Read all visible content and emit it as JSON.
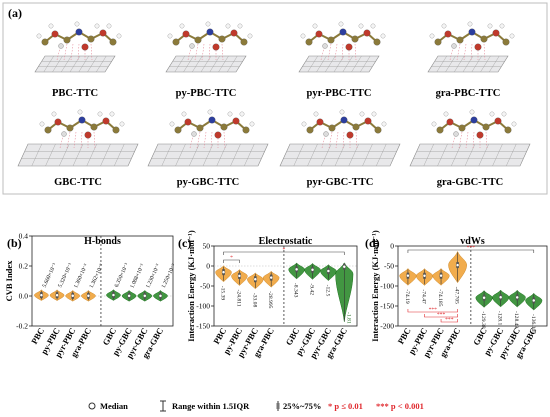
{
  "panel_a": {
    "label": "(a)",
    "structures": [
      "PBC-TTC",
      "py-PBC-TTC",
      "pyr-PBC-TTC",
      "gra-PBC-TTC",
      "GBC-TTC",
      "py-GBC-TTC",
      "pyr-GBC-TTC",
      "gra-GBC-TTC"
    ]
  },
  "colors": {
    "pbc": "#f0a43a",
    "gbc": "#2e8b2e",
    "sig_red": "#e0282d",
    "accent_outline": "#e07b8b"
  },
  "chart_data": [
    {
      "panel": "(b)",
      "type": "violin",
      "title": "H-bonds",
      "ylabel": "CVB Index",
      "ylim": [
        -0.2,
        0.4
      ],
      "yticks": [
        "-0.2",
        "0.0",
        "0.2",
        "0.4"
      ],
      "categories": [
        "PBC",
        "py-PBC",
        "pyr-PBC",
        "gra-PBC",
        "GBC",
        "py-GBC",
        "pyr-GBC",
        "gra-GBC"
      ],
      "medians": [
        0.00566,
        0.00532,
        0.00136,
        0.001362,
        0.00635,
        0.001088,
        0.00123,
        0.00125
      ],
      "annotations": [
        "5.660×10⁻³",
        "5.320×10⁻³",
        "1.360×10⁻³",
        "1.362×10⁻³",
        "6.350×10⁻³",
        "1.088×10⁻³",
        "1.230×10⁻³",
        "1.250×10⁻³"
      ]
    },
    {
      "panel": "(c)",
      "type": "violin",
      "title": "Electrostatic",
      "ylabel": "Interaction Energy (KJ·mol⁻¹)",
      "ylim": [
        -150,
        50
      ],
      "yticks": [
        "-150",
        "-100",
        "-50",
        "0",
        "50"
      ],
      "categories": [
        "PBC",
        "py-PBC",
        "pyr-PBC",
        "gra-PBC",
        "GBC",
        "py-GBC",
        "pyr-GBC",
        "gra-GBC"
      ],
      "medians": [
        -15.39,
        -24.811,
        -33.08,
        -28.995,
        -8.343,
        -9.42,
        -12.5,
        -1.81
      ],
      "annotations": [
        "-15.39",
        "-24.811",
        "-33.08",
        "-28.995",
        "-8.343",
        "-9.42",
        "-12.5",
        "-1.81"
      ],
      "significance": [
        {
          "from": "PBC",
          "to": "py-PBC",
          "mark": "*"
        },
        {
          "from": "PBC",
          "to": "gra-GBC",
          "mark": "*"
        }
      ]
    },
    {
      "panel": "(d)",
      "type": "violin",
      "title": "vdWs",
      "ylabel": "Interaction Energy (KJ·mol⁻¹)",
      "ylim": [
        -200,
        0
      ],
      "yticks": [
        "-200",
        "-150",
        "-100",
        "-50",
        "0"
      ],
      "categories": [
        "PBC",
        "py-PBC",
        "pyr-PBC",
        "gra-PBC",
        "GBC",
        "py-GBC",
        "pyr-GBC",
        "gra-GBC"
      ],
      "medians": [
        -74.19,
        -74.47,
        -74.185,
        -47.705,
        -129.38,
        -128.1,
        -128.49,
        -136.105
      ],
      "annotations": [
        "-74.19",
        "-74.47",
        "-74.185",
        "-47.705",
        "-129.38",
        "-128.1",
        "-128.49",
        "-136.105"
      ],
      "significance": [
        {
          "from": "PBC",
          "to": "gra-PBC",
          "mark": "***"
        },
        {
          "from": "py-PBC",
          "to": "gra-PBC",
          "mark": "***"
        },
        {
          "from": "pyr-PBC",
          "to": "gra-PBC",
          "mark": "***"
        },
        {
          "from": "PBC",
          "to": "gra-GBC",
          "mark": "***"
        }
      ]
    }
  ],
  "legend": {
    "median": "Median",
    "range": "Range within 1.5IQR",
    "iqr": "25%~75%",
    "p1": "* p ≤ 0.01",
    "p2": "*** p < 0.001"
  }
}
